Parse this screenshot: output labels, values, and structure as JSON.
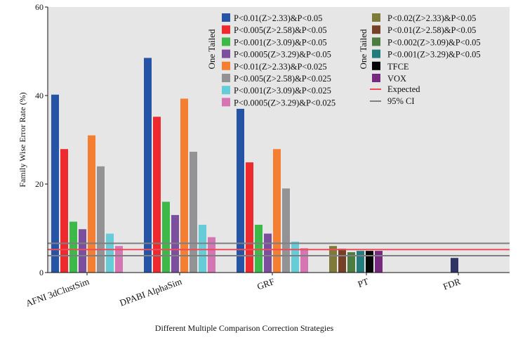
{
  "chart_data": {
    "type": "bar",
    "title": "",
    "xlabel": "Different Multiple Comparison Correction Strategies",
    "ylabel": "Family Wise Error Rate (%)",
    "ylim": [
      0,
      60
    ],
    "yticks": [
      "0",
      "20",
      "40",
      "60"
    ],
    "categories": [
      "AFNI 3dClustSim",
      "DPABI AlphaSim",
      "GRF",
      "PT",
      "FDR"
    ],
    "legend_group_labels": [
      "One Tailed",
      "One Tailed"
    ],
    "series": [
      {
        "name": "P<0.01(Z>2.33)&P<0.05",
        "color": "#2553a6",
        "values": [
          40.2,
          48.5,
          37.0,
          null,
          null
        ]
      },
      {
        "name": "P<0.005(Z>2.58)&P<0.05",
        "color": "#ee2a2e",
        "values": [
          27.9,
          35.2,
          24.9,
          null,
          null
        ]
      },
      {
        "name": "P<0.001(Z>3.09)&P<0.05",
        "color": "#3db94a",
        "values": [
          11.5,
          16.0,
          10.8,
          null,
          null
        ]
      },
      {
        "name": "P<0.0005(Z>3.29)&P<0.05",
        "color": "#7b4e9e",
        "values": [
          9.8,
          13.0,
          8.8,
          null,
          null
        ]
      },
      {
        "name": "P<0.01(Z>2.33)&P<0.025",
        "color": "#f47f33",
        "values": [
          31.0,
          39.3,
          27.9,
          null,
          null
        ]
      },
      {
        "name": "P<0.005(Z>2.58)&P<0.025",
        "color": "#939396",
        "values": [
          24.0,
          27.3,
          19.0,
          null,
          null
        ]
      },
      {
        "name": "P<0.001(Z>3.09)&P<0.025",
        "color": "#66cdd8",
        "values": [
          8.8,
          10.8,
          7.0,
          null,
          null
        ]
      },
      {
        "name": "P<0.0005(Z>3.29)&P<0.025",
        "color": "#d575b2",
        "values": [
          6.0,
          8.0,
          5.5,
          null,
          null
        ]
      },
      {
        "name": "P<0.02(Z>2.33)&P<0.05",
        "color": "#7d7a3a",
        "values": [
          null,
          null,
          null,
          6.0,
          null
        ]
      },
      {
        "name": "P<0.01(Z>2.58)&P<0.05",
        "color": "#744127",
        "values": [
          null,
          null,
          null,
          5.4,
          null
        ]
      },
      {
        "name": "P<0.002(Z>3.09)&P<0.05",
        "color": "#4b7c40",
        "values": [
          null,
          null,
          null,
          4.6,
          null
        ]
      },
      {
        "name": "P<0.001(Z>3.29)&P<0.05",
        "color": "#237c7c",
        "values": [
          null,
          null,
          null,
          4.9,
          null
        ]
      },
      {
        "name": "TFCE",
        "color": "#050505",
        "values": [
          null,
          null,
          null,
          4.9,
          null
        ]
      },
      {
        "name": "VOX",
        "color": "#76297f",
        "values": [
          null,
          null,
          null,
          4.9,
          null
        ]
      },
      {
        "name": "FDR",
        "color": "#2e3463",
        "values": [
          null,
          null,
          null,
          null,
          3.3
        ]
      }
    ],
    "lines": [
      {
        "name": "Expected",
        "color": "#ee4b5a",
        "value": 5.2
      },
      {
        "name": "95% CI",
        "color": "#7f7f83",
        "value": [
          3.8,
          6.6
        ]
      }
    ]
  }
}
